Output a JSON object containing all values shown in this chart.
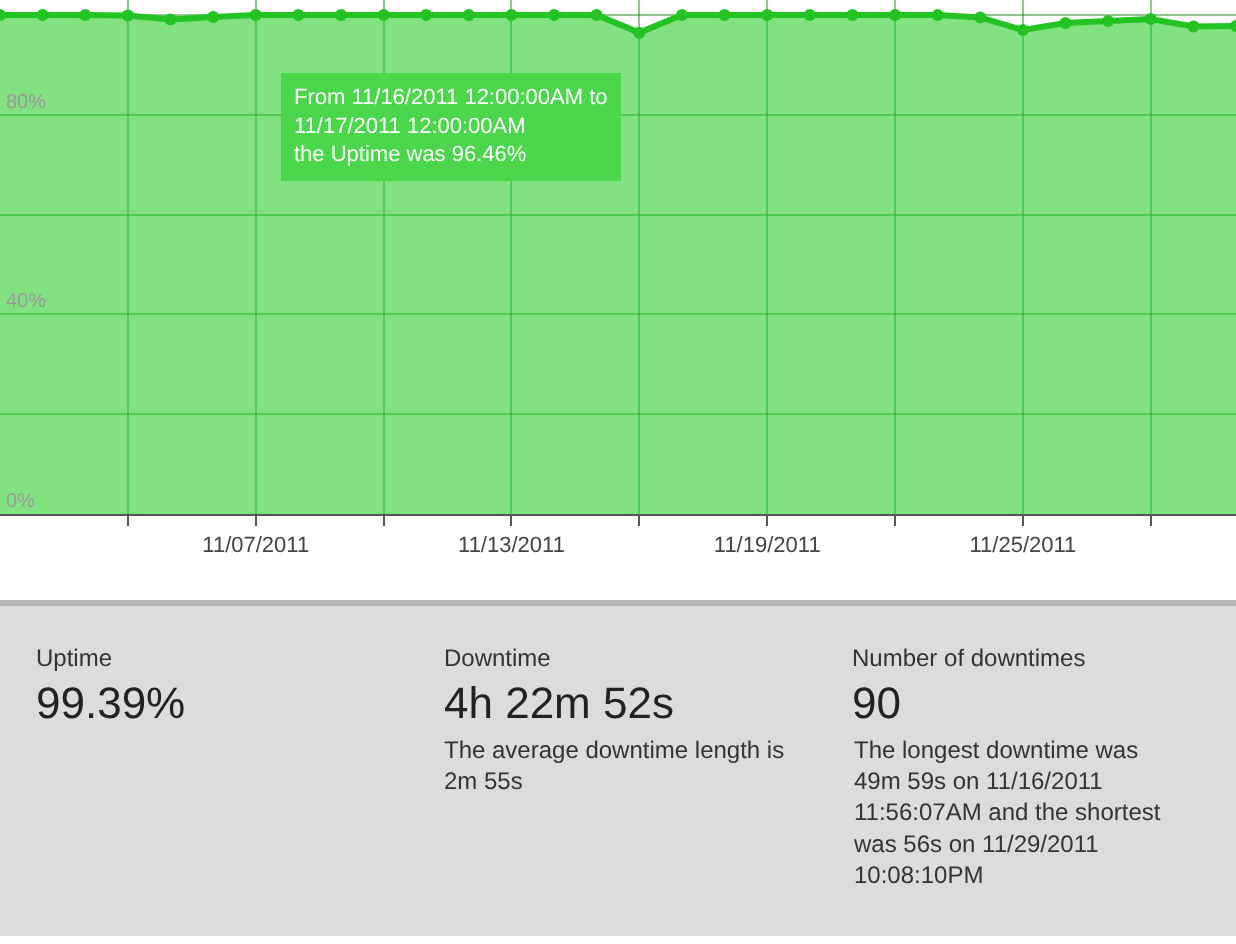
{
  "chart_data": [
    {
      "type": "area",
      "x": [
        "2011-11-01",
        "2011-11-02",
        "2011-11-03",
        "2011-11-04",
        "2011-11-05",
        "2011-11-06",
        "2011-11-07",
        "2011-11-08",
        "2011-11-09",
        "2011-11-10",
        "2011-11-11",
        "2011-11-12",
        "2011-11-13",
        "2011-11-14",
        "2011-11-15",
        "2011-11-16",
        "2011-11-17",
        "2011-11-18",
        "2011-11-19",
        "2011-11-20",
        "2011-11-21",
        "2011-11-22",
        "2011-11-23",
        "2011-11-24",
        "2011-11-25",
        "2011-11-26",
        "2011-11-27",
        "2011-11-28",
        "2011-11-29",
        "2011-11-30"
      ],
      "series": [
        {
          "color": "#22c322",
          "values": [
            100,
            100,
            100,
            99.9,
            99.1,
            99.6,
            100,
            100,
            100,
            100,
            100,
            100,
            100,
            100,
            100,
            96.46,
            100,
            100,
            100,
            100,
            100,
            100,
            100,
            99.5,
            97,
            98.4,
            98.8,
            99.2,
            97.7,
            97.8
          ]
        }
      ],
      "xlim": [
        "2011-11-01",
        "2011-11-30"
      ],
      "xticks": [
        {
          "value": "2011-11-04",
          "label": null
        },
        {
          "value": "2011-11-07",
          "label": "11/07/2011"
        },
        {
          "value": "2011-11-10",
          "label": null
        },
        {
          "value": "2011-11-13",
          "label": "11/13/2011"
        },
        {
          "value": "2011-11-16",
          "label": null
        },
        {
          "value": "2011-11-19",
          "label": "11/19/2011"
        },
        {
          "value": "2011-11-22",
          "label": null
        },
        {
          "value": "2011-11-25",
          "label": "11/25/2011"
        },
        {
          "value": "2011-11-28",
          "label": null
        }
      ],
      "ylim": [
        0,
        103
      ],
      "yticks": [
        {
          "value": 0,
          "label": "0%"
        },
        {
          "value": 20,
          "label": null
        },
        {
          "value": 40,
          "label": "40%"
        },
        {
          "value": 60,
          "label": null
        },
        {
          "value": 80,
          "label": "80%"
        },
        {
          "value": 100,
          "label": null
        }
      ],
      "grid": true,
      "marker": "circle",
      "line_style": "solid",
      "annotations": [
        {
          "text": "From 11/16/2011 12:00:00AM to\n11/17/2011 12:00:00AM\nthe Uptime was 96.46%",
          "x": "2011-11-16",
          "y": 96.46
        }
      ]
    },
    {
      "type": "other",
      "annotations": [
        "Uptime",
        "99.39%",
        "Downtime",
        "4h 22m 52s",
        "The average downtime length is\n2m 55s",
        "Number of downtimes",
        "90",
        "The longest downtime was\n49m 59s on 11/16/2011\n11:56:07AM and the shortest\nwas 56s on 11/29/2011\n10:08:10PM"
      ]
    }
  ]
}
